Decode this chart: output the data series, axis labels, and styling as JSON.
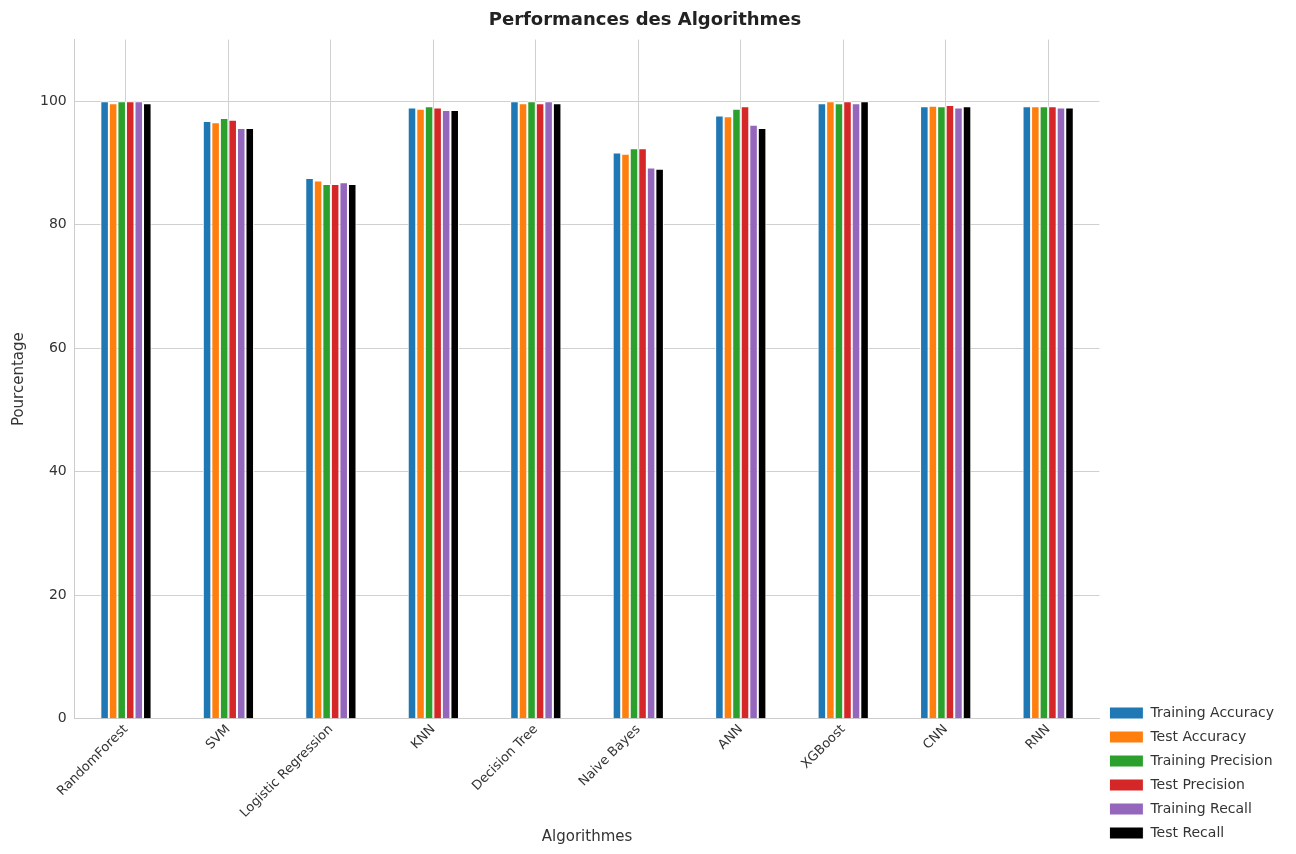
{
  "chart_data": {
    "type": "bar",
    "title": "Performances des Algorithmes",
    "xlabel": "Algorithmes",
    "ylabel": "Pourcentage",
    "categories": [
      "RandomForest",
      "SVM",
      "Logistic Regression",
      "KNN",
      "Decision Tree",
      "Naive Bayes",
      "ANN",
      "XGBoost",
      "CNN",
      "RNN"
    ],
    "series": [
      {
        "name": "Training Accuracy",
        "color": "#1f77b4",
        "values": [
          100,
          96.8,
          87.6,
          99.0,
          100,
          91.7,
          97.7,
          99.7,
          99.2,
          99.2
        ]
      },
      {
        "name": "Test Accuracy",
        "color": "#ff7f0e",
        "values": [
          99.7,
          96.6,
          87.2,
          98.8,
          99.7,
          91.5,
          97.6,
          100,
          99.3,
          99.2
        ]
      },
      {
        "name": "Training Precision",
        "color": "#2ca02c",
        "values": [
          100,
          97.3,
          86.6,
          99.2,
          100,
          92.4,
          98.8,
          99.7,
          99.2,
          99.2
        ]
      },
      {
        "name": "Test Precision",
        "color": "#d62728",
        "values": [
          100,
          97.0,
          86.6,
          99.0,
          99.7,
          92.4,
          99.2,
          100,
          99.4,
          99.2
        ]
      },
      {
        "name": "Training Recall",
        "color": "#9467bd",
        "values": [
          100,
          95.7,
          86.9,
          98.6,
          100,
          89.3,
          96.2,
          99.7,
          99.0,
          99.0
        ]
      },
      {
        "name": "Test Recall",
        "color": "#000000",
        "values": [
          99.7,
          95.7,
          86.6,
          98.6,
          99.7,
          89.1,
          95.7,
          100,
          99.2,
          99.0
        ]
      }
    ],
    "ylim": [
      0,
      110
    ],
    "yticks": [
      0,
      20,
      40,
      60,
      80,
      100
    ],
    "grid": true,
    "legend": "bottom right"
  }
}
